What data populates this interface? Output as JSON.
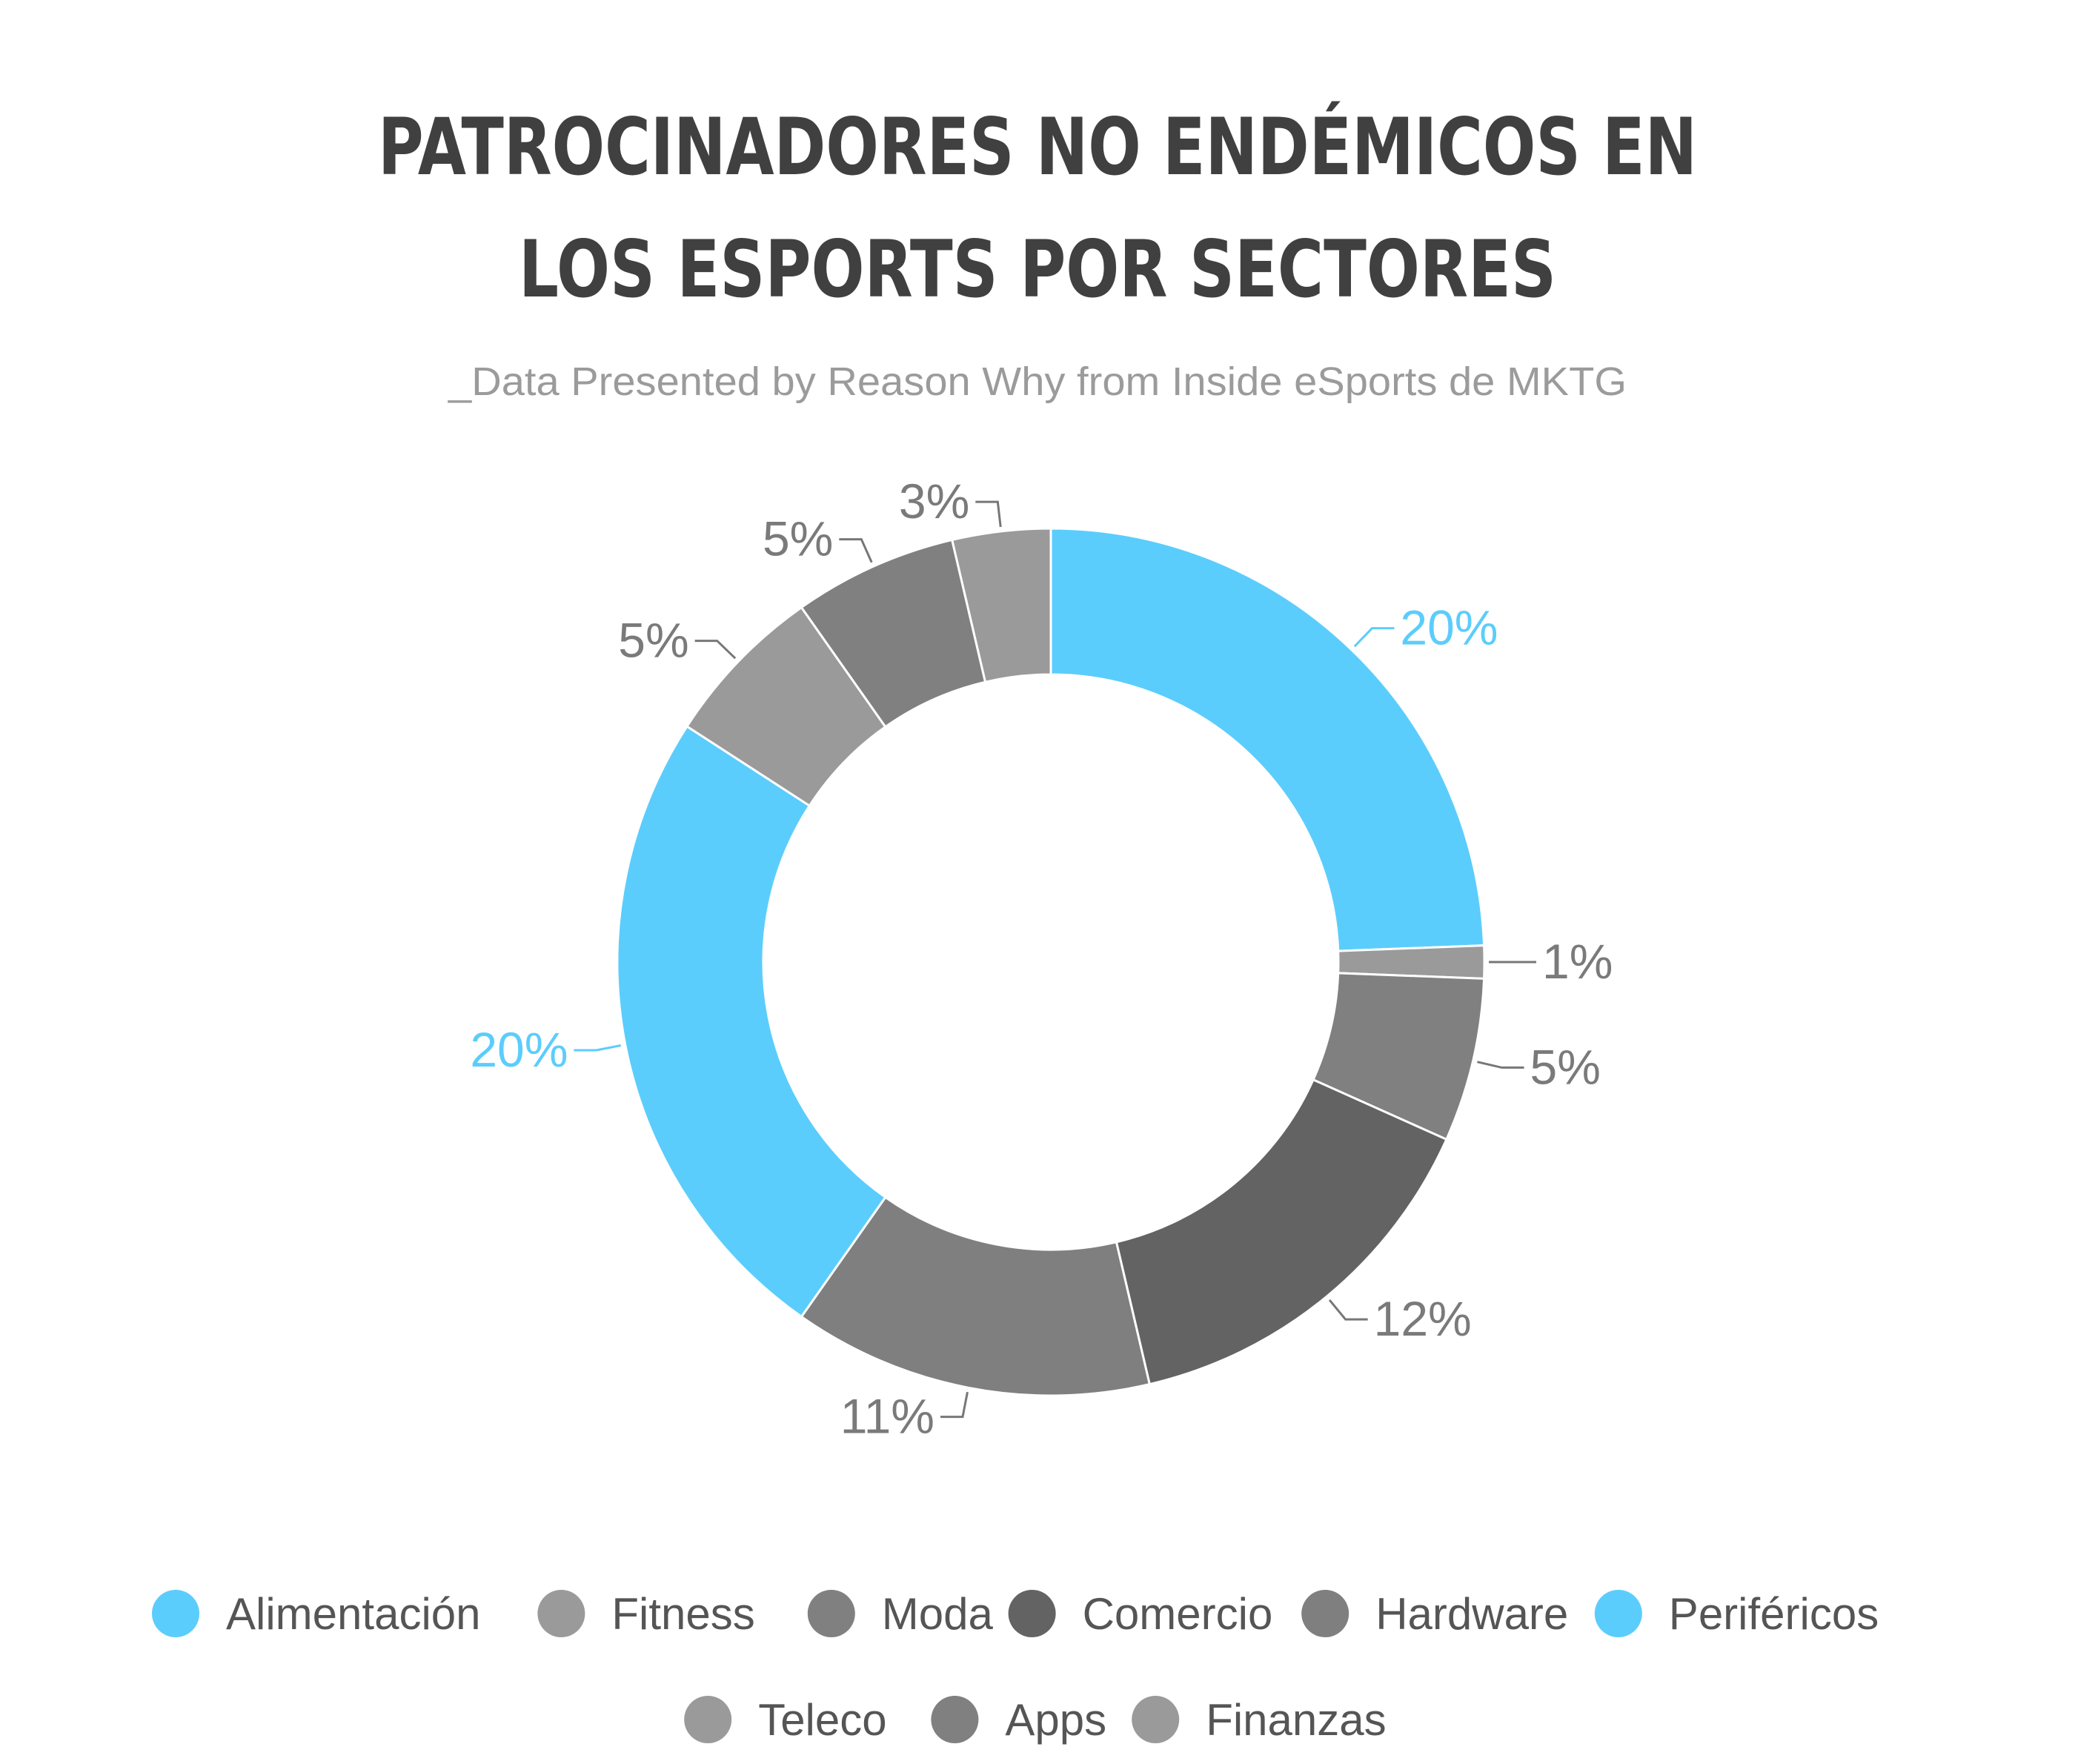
{
  "header": {
    "title_line1": "PATROCINADORES NO ENDÉMICOS EN",
    "title_line2": "LOS ESPORTS POR SECTORES",
    "subtitle": "_Data Presented by Reason Why from Inside eSports de MKTG"
  },
  "chart_data": {
    "type": "pie",
    "style": "donut",
    "legend_position": "bottom",
    "slices": [
      {
        "name": "Alimentación",
        "value": 20,
        "label": "20%",
        "color": "#5bcdfc"
      },
      {
        "name": "Fitness",
        "value": 1,
        "label": "1%",
        "color": "#9a9a9a"
      },
      {
        "name": "Moda",
        "value": 5,
        "label": "5%",
        "color": "#808080"
      },
      {
        "name": "Comercio",
        "value": 12,
        "label": "12%",
        "color": "#636363"
      },
      {
        "name": "Hardware",
        "value": 11,
        "label": "11%",
        "color": "#7f7f7f"
      },
      {
        "name": "Periféricos",
        "value": 20,
        "label": "20%",
        "color": "#5bcdfc"
      },
      {
        "name": "Teleco",
        "value": 5,
        "label": "5%",
        "color": "#9a9a9a"
      },
      {
        "name": "Apps",
        "value": 5,
        "label": "5%",
        "color": "#808080"
      },
      {
        "name": "Finanzas",
        "value": 3,
        "label": "3%",
        "color": "#9a9a9a"
      }
    ]
  }
}
